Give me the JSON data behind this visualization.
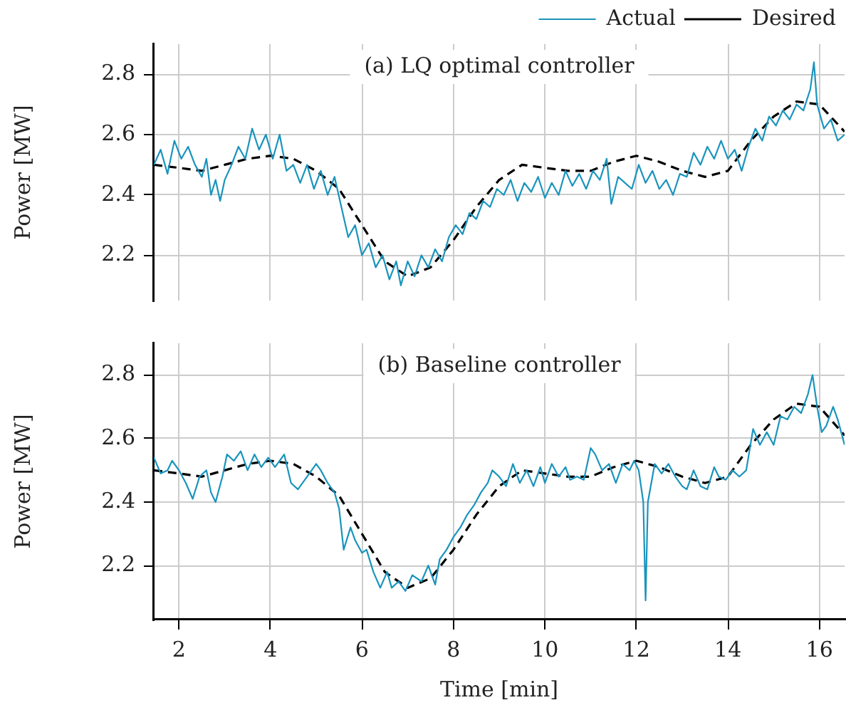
{
  "chart_data": [
    {
      "type": "line",
      "title": "(a) LQ optimal controller",
      "ylabel": "Power [MW]",
      "xlim": [
        1.45,
        16.55
      ],
      "xticks": [
        2,
        4,
        6,
        8,
        10,
        12,
        14,
        16
      ],
      "ylim": [
        2.05,
        2.9
      ],
      "yticks": [
        2.2,
        2.4,
        2.6,
        2.8
      ],
      "grid": true,
      "legend": "top right",
      "tick_labels": "y",
      "marker": "none",
      "series": [
        {
          "name": "Actual",
          "color": "#1a94bd",
          "line_style": "solid",
          "x": [
            1.45,
            1.6,
            1.75,
            1.9,
            2.05,
            2.2,
            2.35,
            2.5,
            2.6,
            2.7,
            2.8,
            2.9,
            3.0,
            3.15,
            3.3,
            3.45,
            3.6,
            3.75,
            3.9,
            4.05,
            4.2,
            4.35,
            4.5,
            4.65,
            4.8,
            4.95,
            5.1,
            5.25,
            5.4,
            5.55,
            5.7,
            5.85,
            6.0,
            6.15,
            6.3,
            6.45,
            6.6,
            6.75,
            6.85,
            7.0,
            7.15,
            7.3,
            7.45,
            7.6,
            7.75,
            7.9,
            8.05,
            8.2,
            8.35,
            8.5,
            8.65,
            8.8,
            8.95,
            9.1,
            9.25,
            9.4,
            9.55,
            9.7,
            9.85,
            10.0,
            10.15,
            10.3,
            10.45,
            10.6,
            10.75,
            10.9,
            11.05,
            11.2,
            11.35,
            11.45,
            11.6,
            11.75,
            11.9,
            12.05,
            12.2,
            12.35,
            12.5,
            12.65,
            12.8,
            12.95,
            13.1,
            13.25,
            13.4,
            13.55,
            13.7,
            13.85,
            14.0,
            14.15,
            14.3,
            14.45,
            14.6,
            14.75,
            14.9,
            15.05,
            15.2,
            15.35,
            15.5,
            15.65,
            15.8,
            15.88,
            15.95,
            16.1,
            16.25,
            16.4,
            16.55
          ],
          "values": [
            2.5,
            2.55,
            2.47,
            2.58,
            2.52,
            2.56,
            2.5,
            2.46,
            2.52,
            2.4,
            2.45,
            2.38,
            2.45,
            2.5,
            2.56,
            2.52,
            2.62,
            2.55,
            2.6,
            2.52,
            2.6,
            2.48,
            2.5,
            2.44,
            2.5,
            2.42,
            2.48,
            2.4,
            2.46,
            2.36,
            2.26,
            2.3,
            2.2,
            2.24,
            2.16,
            2.2,
            2.12,
            2.18,
            2.1,
            2.18,
            2.13,
            2.2,
            2.16,
            2.22,
            2.18,
            2.26,
            2.3,
            2.27,
            2.34,
            2.32,
            2.38,
            2.36,
            2.42,
            2.4,
            2.45,
            2.38,
            2.44,
            2.41,
            2.46,
            2.39,
            2.44,
            2.4,
            2.48,
            2.43,
            2.47,
            2.42,
            2.48,
            2.45,
            2.52,
            2.37,
            2.46,
            2.44,
            2.42,
            2.5,
            2.44,
            2.48,
            2.42,
            2.45,
            2.4,
            2.47,
            2.46,
            2.54,
            2.5,
            2.56,
            2.52,
            2.58,
            2.52,
            2.55,
            2.48,
            2.56,
            2.62,
            2.58,
            2.66,
            2.63,
            2.68,
            2.65,
            2.7,
            2.68,
            2.75,
            2.84,
            2.7,
            2.62,
            2.65,
            2.58,
            2.6
          ]
        },
        {
          "name": "Desired",
          "color": "#000000",
          "line_style": "dashed",
          "x": [
            1.45,
            2,
            2.5,
            3,
            3.5,
            4,
            4.5,
            5,
            5.5,
            6,
            6.5,
            7,
            7.5,
            8,
            8.5,
            9,
            9.5,
            10,
            10.5,
            11,
            11.5,
            12,
            12.5,
            13,
            13.5,
            14,
            14.5,
            15,
            15.5,
            16,
            16.55
          ],
          "values": [
            2.5,
            2.49,
            2.48,
            2.5,
            2.52,
            2.53,
            2.52,
            2.48,
            2.42,
            2.3,
            2.18,
            2.13,
            2.16,
            2.25,
            2.36,
            2.45,
            2.5,
            2.49,
            2.48,
            2.48,
            2.51,
            2.53,
            2.51,
            2.48,
            2.46,
            2.48,
            2.58,
            2.66,
            2.71,
            2.7,
            2.61
          ]
        }
      ]
    },
    {
      "type": "line",
      "title": "(b) Baseline controller",
      "xlabel": "Time [min]",
      "ylabel": "Power [MW]",
      "xlim": [
        1.45,
        16.55
      ],
      "xticks": [
        2,
        4,
        6,
        8,
        10,
        12,
        14,
        16
      ],
      "ylim": [
        2.03,
        2.9
      ],
      "yticks": [
        2.2,
        2.4,
        2.6,
        2.8
      ],
      "grid": true,
      "marker": "none",
      "series": [
        {
          "color": "#1a94bd",
          "line_style": "solid",
          "x": [
            1.45,
            1.6,
            1.75,
            1.85,
            2.0,
            2.15,
            2.3,
            2.45,
            2.6,
            2.7,
            2.8,
            2.95,
            3.05,
            3.2,
            3.35,
            3.5,
            3.65,
            3.8,
            3.95,
            4.1,
            4.3,
            4.45,
            4.6,
            4.8,
            5.0,
            5.1,
            5.25,
            5.4,
            5.5,
            5.6,
            5.75,
            5.85,
            6.0,
            6.1,
            6.25,
            6.4,
            6.55,
            6.65,
            6.8,
            6.95,
            7.1,
            7.3,
            7.45,
            7.6,
            7.7,
            7.85,
            8.0,
            8.15,
            8.3,
            8.45,
            8.6,
            8.75,
            8.85,
            9.0,
            9.15,
            9.3,
            9.45,
            9.6,
            9.75,
            9.9,
            10.0,
            10.15,
            10.3,
            10.45,
            10.55,
            10.7,
            10.85,
            11.0,
            11.1,
            11.25,
            11.4,
            11.55,
            11.7,
            11.85,
            11.95,
            12.05,
            12.15,
            12.2,
            12.25,
            12.4,
            12.55,
            12.7,
            12.85,
            13.0,
            13.1,
            13.25,
            13.4,
            13.55,
            13.7,
            13.8,
            13.95,
            14.1,
            14.25,
            14.4,
            14.55,
            14.7,
            14.85,
            15.0,
            15.15,
            15.3,
            15.45,
            15.6,
            15.75,
            15.85,
            15.95,
            16.05,
            16.15,
            16.3,
            16.4,
            16.55
          ],
          "values": [
            2.54,
            2.49,
            2.5,
            2.53,
            2.5,
            2.46,
            2.41,
            2.48,
            2.5,
            2.43,
            2.4,
            2.48,
            2.55,
            2.53,
            2.56,
            2.5,
            2.55,
            2.51,
            2.54,
            2.51,
            2.55,
            2.46,
            2.44,
            2.48,
            2.52,
            2.5,
            2.46,
            2.43,
            2.38,
            2.25,
            2.32,
            2.28,
            2.24,
            2.25,
            2.18,
            2.13,
            2.18,
            2.13,
            2.15,
            2.12,
            2.17,
            2.15,
            2.2,
            2.14,
            2.22,
            2.25,
            2.29,
            2.32,
            2.36,
            2.39,
            2.43,
            2.46,
            2.5,
            2.48,
            2.45,
            2.52,
            2.46,
            2.5,
            2.45,
            2.51,
            2.46,
            2.52,
            2.48,
            2.51,
            2.47,
            2.48,
            2.47,
            2.57,
            2.55,
            2.5,
            2.52,
            2.46,
            2.52,
            2.5,
            2.53,
            2.5,
            2.4,
            2.09,
            2.4,
            2.52,
            2.49,
            2.52,
            2.48,
            2.45,
            2.44,
            2.5,
            2.45,
            2.44,
            2.51,
            2.48,
            2.47,
            2.5,
            2.48,
            2.5,
            2.63,
            2.58,
            2.62,
            2.58,
            2.67,
            2.66,
            2.7,
            2.68,
            2.74,
            2.8,
            2.7,
            2.62,
            2.64,
            2.7,
            2.66,
            2.58
          ]
        },
        {
          "color": "#000000",
          "line_style": "dashed",
          "x": [
            1.45,
            2,
            2.5,
            3,
            3.5,
            4,
            4.5,
            5,
            5.5,
            6,
            6.5,
            7,
            7.5,
            8,
            8.5,
            9,
            9.5,
            10,
            10.5,
            11,
            11.5,
            12,
            12.5,
            13,
            13.5,
            14,
            14.5,
            15,
            15.5,
            16,
            16.55
          ],
          "values": [
            2.5,
            2.49,
            2.48,
            2.5,
            2.52,
            2.53,
            2.52,
            2.48,
            2.42,
            2.3,
            2.18,
            2.13,
            2.16,
            2.25,
            2.36,
            2.45,
            2.5,
            2.49,
            2.48,
            2.48,
            2.51,
            2.53,
            2.51,
            2.48,
            2.46,
            2.48,
            2.58,
            2.66,
            2.71,
            2.7,
            2.61
          ]
        }
      ]
    }
  ]
}
